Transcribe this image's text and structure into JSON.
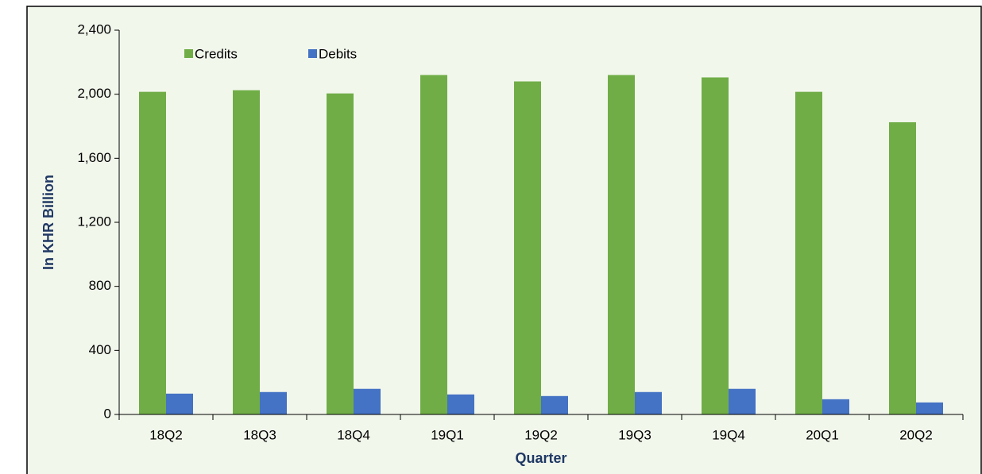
{
  "chart_data": {
    "type": "bar",
    "x_label": "Quarter",
    "y_label": "In KHR Billion",
    "categories": [
      "18Q2",
      "18Q3",
      "18Q4",
      "19Q1",
      "19Q2",
      "19Q3",
      "19Q4",
      "20Q1",
      "20Q2"
    ],
    "series": [
      {
        "name": "Credits",
        "color": "#70ad47",
        "values": [
          2015,
          2025,
          2005,
          2120,
          2080,
          2120,
          2105,
          2015,
          1825
        ]
      },
      {
        "name": "Debits",
        "color": "#4472c4",
        "values": [
          130,
          140,
          160,
          125,
          115,
          140,
          160,
          95,
          75
        ]
      }
    ],
    "ylim": [
      0,
      2400
    ],
    "yticks": [
      0,
      {
        "value": 400,
        "label": "400"
      },
      {
        "value": 800,
        "label": "800"
      },
      {
        "value": 1200,
        "label": "1,200"
      },
      {
        "value": 1600,
        "label": "1,600"
      },
      {
        "value": 2000,
        "label": "2,000"
      },
      {
        "value": 2400,
        "label": "2,400"
      }
    ],
    "grid": false,
    "legend": "top-left"
  }
}
